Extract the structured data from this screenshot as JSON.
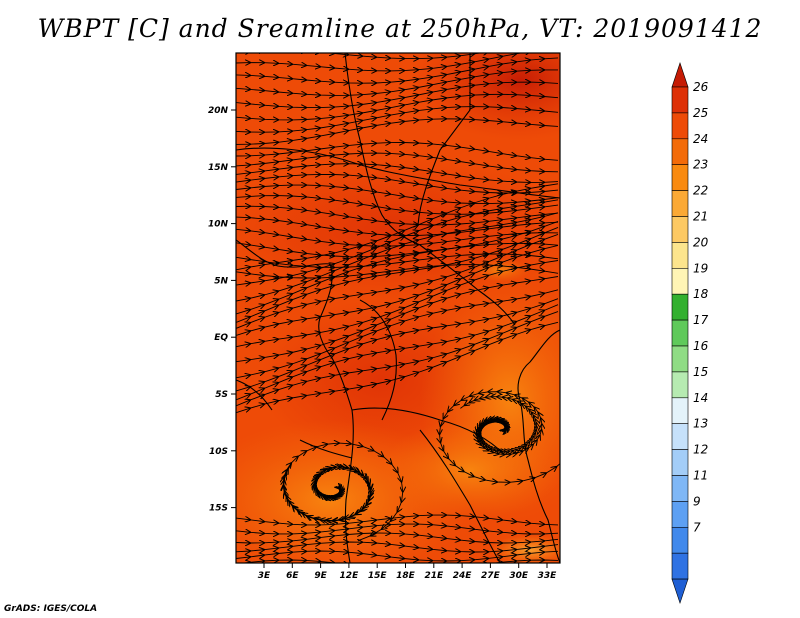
{
  "title": "WBPT [C] and Sreamline at 250hPa, VT: 2019091412",
  "credit": "GrADS: IGES/COLA",
  "map": {
    "lat_labels": [
      "20N",
      "15N",
      "10N",
      "5N",
      "EQ",
      "5S",
      "10S",
      "15S"
    ],
    "lon_labels": [
      "3E",
      "6E",
      "9E",
      "12E",
      "15E",
      "18E",
      "21E",
      "24E",
      "27E",
      "30E",
      "33E"
    ]
  },
  "colorbar": {
    "levels": [
      "7",
      "9",
      "11",
      "12",
      "13",
      "14",
      "15",
      "16",
      "17",
      "18",
      "19",
      "20",
      "21",
      "22",
      "23",
      "24",
      "25",
      "26"
    ],
    "colors": [
      "#1f5fd4",
      "#2f72e3",
      "#4189ec",
      "#5da0f3",
      "#7fb7f6",
      "#a3cdf8",
      "#c6e1fa",
      "#e4f3fa",
      "#b6ebb1",
      "#8fdc84",
      "#5fc95a",
      "#33b02f",
      "#fff5b5",
      "#fde58d",
      "#fdc963",
      "#fba935",
      "#f98a10",
      "#f36b09",
      "#ee4b07",
      "#de3006",
      "#c51b04"
    ]
  }
}
